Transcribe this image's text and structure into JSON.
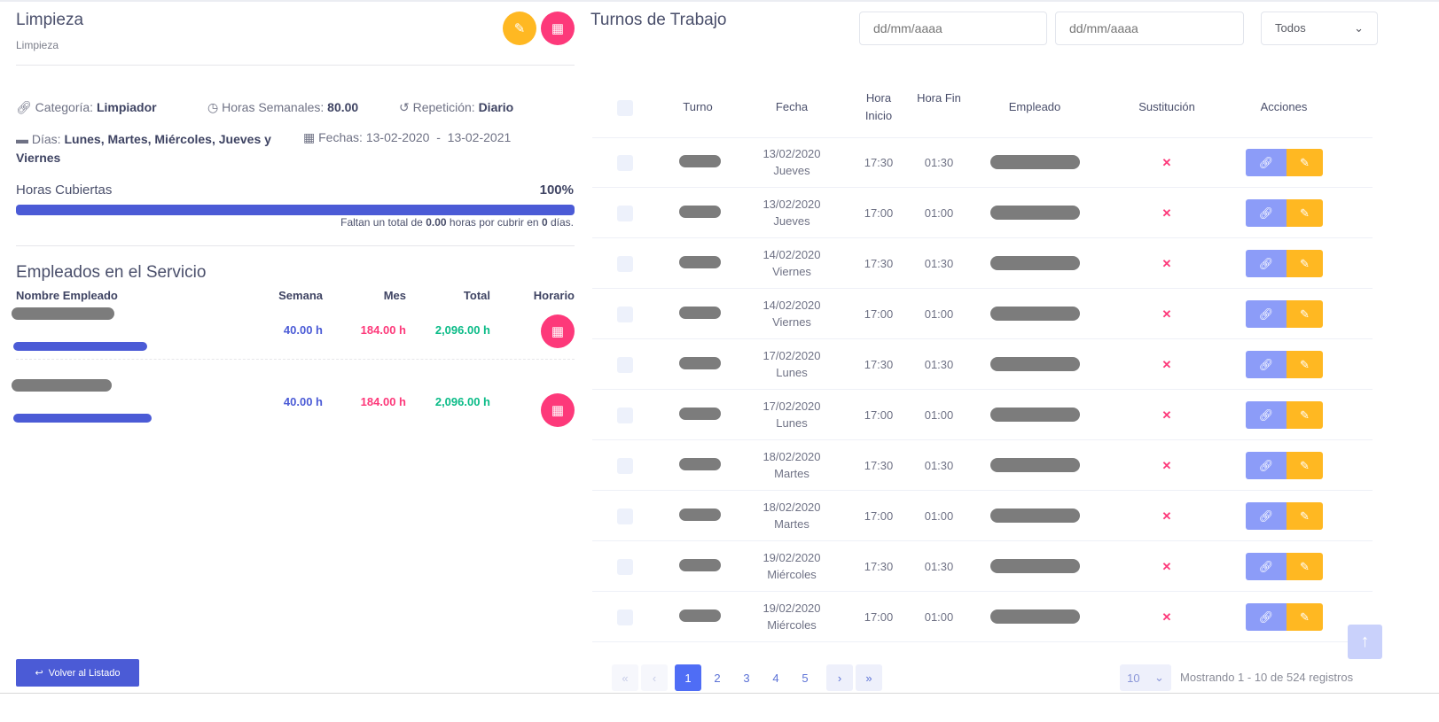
{
  "service": {
    "title": "Limpieza",
    "subtitle": "Limpieza"
  },
  "details": {
    "categoria_label": "Categoría:",
    "categoria": "Limpiador",
    "horas_label": "Horas Semanales:",
    "horas": "80.00",
    "repeticion_label": "Repetición:",
    "repeticion": "Diario",
    "dias_label": "Días:",
    "dias": "Lunes, Martes, Miércoles, Jueves y Viernes",
    "fechas_label": "Fechas:",
    "fechas": "13-02-2020  -  13-02-2021"
  },
  "coverage": {
    "label": "Horas Cubiertas",
    "percent_text": "100%",
    "percent": 100,
    "note_pre": "Faltan un total de",
    "note_hours": "0.00",
    "note_mid": "horas por cubrir en",
    "note_days": "0",
    "note_post": "días."
  },
  "employees": {
    "title": "Empleados en el Servicio",
    "headers": [
      "Nombre Empleado",
      "Semana",
      "Mes",
      "Total",
      "Horario"
    ],
    "rows": [
      {
        "semana": "40.00 h",
        "mes": "184.00 h",
        "total": "2,096.00 h"
      },
      {
        "semana": "40.00 h",
        "mes": "184.00 h",
        "total": "2,096.00 h"
      }
    ]
  },
  "back_button": "Volver al Listado",
  "shifts": {
    "title": "Turnos de Trabajo",
    "date_from_placeholder": "dd/mm/aaaa",
    "date_to_placeholder": "dd/mm/aaaa",
    "filter": "Todos",
    "headers": [
      "Turno",
      "Fecha",
      "Hora Inicio",
      "Hora Fin",
      "Empleado",
      "Sustitución",
      "Acciones"
    ],
    "rows": [
      {
        "fecha": "13/02/2020",
        "dia": "Jueves",
        "inicio": "17:30",
        "fin": "01:30",
        "sust": "✕"
      },
      {
        "fecha": "13/02/2020",
        "dia": "Jueves",
        "inicio": "17:00",
        "fin": "01:00",
        "sust": "✕"
      },
      {
        "fecha": "14/02/2020",
        "dia": "Viernes",
        "inicio": "17:30",
        "fin": "01:30",
        "sust": "✕"
      },
      {
        "fecha": "14/02/2020",
        "dia": "Viernes",
        "inicio": "17:00",
        "fin": "01:00",
        "sust": "✕"
      },
      {
        "fecha": "17/02/2020",
        "dia": "Lunes",
        "inicio": "17:30",
        "fin": "01:30",
        "sust": "✕"
      },
      {
        "fecha": "17/02/2020",
        "dia": "Lunes",
        "inicio": "17:00",
        "fin": "01:00",
        "sust": "✕"
      },
      {
        "fecha": "18/02/2020",
        "dia": "Martes",
        "inicio": "17:30",
        "fin": "01:30",
        "sust": "✕"
      },
      {
        "fecha": "18/02/2020",
        "dia": "Martes",
        "inicio": "17:00",
        "fin": "01:00",
        "sust": "✕"
      },
      {
        "fecha": "19/02/2020",
        "dia": "Miércoles",
        "inicio": "17:30",
        "fin": "01:30",
        "sust": "✕"
      },
      {
        "fecha": "19/02/2020",
        "dia": "Miércoles",
        "inicio": "17:00",
        "fin": "01:00",
        "sust": "✕"
      }
    ]
  },
  "pagination": {
    "first": "«",
    "prev": "‹",
    "pages": [
      "1",
      "2",
      "3",
      "4",
      "5"
    ],
    "current": "1",
    "next": "›",
    "last": "»",
    "page_size": "10",
    "summary": "Mostrando 1 - 10 de 524 registros"
  },
  "colors": {
    "primary": "#4b5bd6",
    "warning": "#ffb822",
    "danger": "#fd397a",
    "success": "#0abb87",
    "info": "#8c9cf8"
  }
}
